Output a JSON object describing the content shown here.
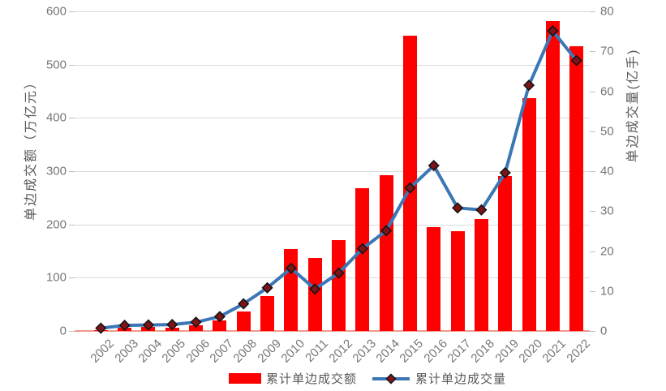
{
  "chart_data": {
    "type": "bar+line",
    "title": "",
    "categories": [
      "2002",
      "2003",
      "2004",
      "2005",
      "2006",
      "2007",
      "2008",
      "2009",
      "2010",
      "2011",
      "2012",
      "2013",
      "2014",
      "2015",
      "2016",
      "2017",
      "2018",
      "2019",
      "2020",
      "2021",
      "2022"
    ],
    "series": [
      {
        "name": "累计单边成交额",
        "type": "bar",
        "axis": "left",
        "unit": "万亿元",
        "color": "#ff0000",
        "values": [
          2.0,
          5.4,
          7.3,
          6.7,
          10.5,
          20.5,
          36.0,
          65.3,
          154.1,
          137.5,
          171.1,
          267.5,
          292.0,
          554.2,
          195.6,
          187.9,
          210.8,
          290.6,
          437.5,
          581.2,
          534.9
        ]
      },
      {
        "name": "累计单边成交量",
        "type": "line",
        "axis": "right",
        "unit": "亿手",
        "color": "#3c77b5",
        "marker": "diamond",
        "marker_color": "#7e1418",
        "marker_border_color": "#141414",
        "values": [
          0.7,
          1.4,
          1.5,
          1.6,
          2.2,
          3.6,
          6.8,
          10.8,
          15.7,
          10.5,
          14.5,
          20.6,
          25.1,
          35.8,
          41.4,
          30.8,
          30.3,
          39.6,
          61.5,
          75.1,
          67.7
        ]
      }
    ],
    "left_axis": {
      "title": "单边成交额（万亿元）",
      "range": [
        0,
        600
      ],
      "ticks": [
        0,
        100,
        200,
        300,
        400,
        500,
        600
      ]
    },
    "right_axis": {
      "title": "单边成交量(亿手)",
      "range": [
        0,
        80
      ],
      "ticks": [
        0,
        10,
        20,
        30,
        40,
        50,
        60,
        70,
        80
      ]
    },
    "grid": true,
    "gridline_color": "#d9d9d9",
    "x_axis_line_color": "#f0998d",
    "legend_position": "bottom"
  },
  "legend": {
    "items": [
      {
        "label": "累计单边成交额",
        "swatch": "bar"
      },
      {
        "label": "累计单边成交量",
        "swatch": "line-diamond"
      }
    ]
  }
}
